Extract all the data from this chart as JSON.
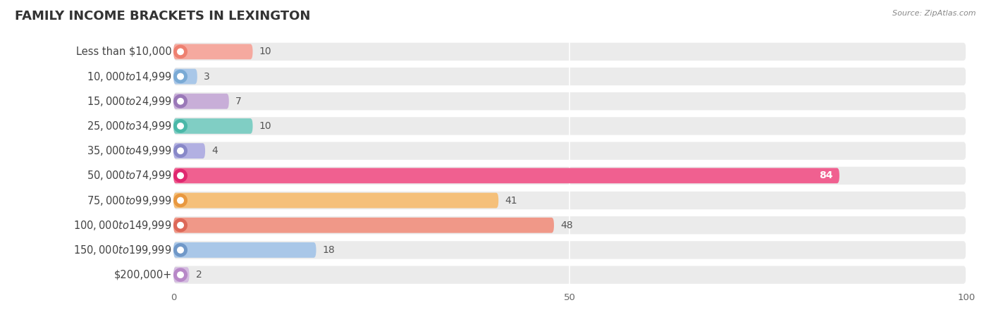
{
  "title": "FAMILY INCOME BRACKETS IN LEXINGTON",
  "source": "Source: ZipAtlas.com",
  "categories": [
    "Less than $10,000",
    "$10,000 to $14,999",
    "$15,000 to $24,999",
    "$25,000 to $34,999",
    "$35,000 to $49,999",
    "$50,000 to $74,999",
    "$75,000 to $99,999",
    "$100,000 to $149,999",
    "$150,000 to $199,999",
    "$200,000+"
  ],
  "values": [
    10,
    3,
    7,
    10,
    4,
    84,
    41,
    48,
    18,
    2
  ],
  "bar_colors": [
    "#f5a99f",
    "#a9c7e8",
    "#c8aed8",
    "#80cec4",
    "#b2b0e2",
    "#f06090",
    "#f5c07a",
    "#f09888",
    "#a9c7e8",
    "#d4bce0"
  ],
  "dot_colors": [
    "#ee8070",
    "#7aaad5",
    "#9a78b8",
    "#4ab8a8",
    "#8888c8",
    "#e02870",
    "#e89840",
    "#dd6858",
    "#7098c8",
    "#b888c8"
  ],
  "xlim": [
    0,
    100
  ],
  "xticks": [
    0,
    50,
    100
  ],
  "background_color": "#ffffff",
  "bar_bg_color": "#ebebeb",
  "title_fontsize": 13,
  "label_fontsize": 10.5,
  "value_fontsize": 10
}
